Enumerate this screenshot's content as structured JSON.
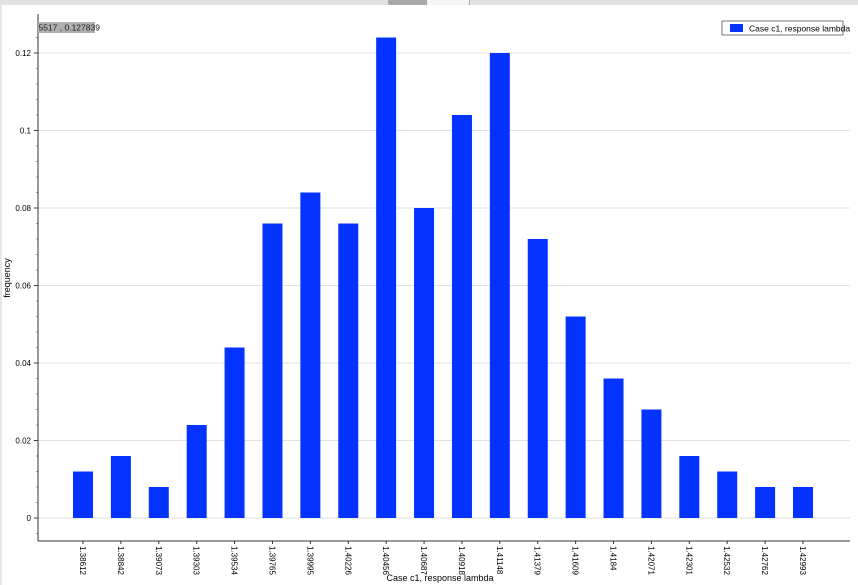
{
  "window": {
    "tabs": [
      "",
      ""
    ]
  },
  "tooltip": "5517 , 0.127839",
  "chart_data": {
    "type": "bar",
    "title": "",
    "xlabel": "Case c1, response lambda",
    "ylabel": "frequency",
    "categories": [
      "1.38612",
      "1.38842",
      "1.39073",
      "1.39303",
      "1.39534",
      "1.39765",
      "1.39995",
      "1.40226",
      "1.40456",
      "1.40687",
      "1.40918",
      "1.41148",
      "1.41379",
      "1.41609",
      "1.4184",
      "1.42071",
      "1.42301",
      "1.42532",
      "1.42762",
      "1.42993"
    ],
    "series": [
      {
        "name": "Case c1, response lambda",
        "color": "#0433ff",
        "values": [
          0.012,
          0.016,
          0.008,
          0.024,
          0.044,
          0.076,
          0.084,
          0.076,
          0.124,
          0.08,
          0.104,
          0.12,
          0.072,
          0.052,
          0.036,
          0.028,
          0.016,
          0.012,
          0.008,
          0.008
        ]
      }
    ],
    "yticks": [
      "0",
      "0.02",
      "0.04",
      "0.06",
      "0.08",
      "0.1",
      "0.12"
    ],
    "ylim": [
      -0.006,
      0.13
    ],
    "grid": true,
    "legend": "top-right"
  }
}
